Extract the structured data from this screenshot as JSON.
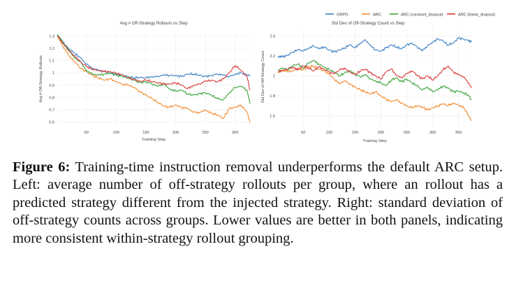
{
  "legend": [
    {
      "name": "GRPO",
      "color": "#3a7fc2"
    },
    {
      "name": "ARC",
      "color": "#f28a2e"
    },
    {
      "name": "ARC (constant_dropout)",
      "color": "#3aa43a"
    },
    {
      "name": "ARC (linear_dropout)",
      "color": "#d93a3a"
    }
  ],
  "chart_data": [
    {
      "type": "line",
      "title": "Avg # Off-Strategy Rollouts vs Step",
      "xlabel": "Training Step",
      "ylabel": "Avg # Off-Strategy Rollouts",
      "xlim": [
        1,
        325
      ],
      "ylim": [
        0.57,
        1.33
      ],
      "xticks": [
        50,
        100,
        150,
        200,
        250,
        300
      ],
      "yticks": [
        0.6,
        0.7,
        0.8,
        0.9,
        1.0,
        1.1,
        1.2,
        1.3
      ],
      "ytick_labels": [
        "0.6",
        "0.7",
        "0.8",
        "0.9",
        "1",
        "1.1",
        "1.2",
        "1.3"
      ],
      "grid": true,
      "x": [
        1,
        10,
        20,
        30,
        40,
        50,
        60,
        70,
        80,
        90,
        100,
        110,
        120,
        130,
        140,
        150,
        160,
        170,
        180,
        190,
        200,
        210,
        220,
        230,
        240,
        250,
        260,
        270,
        280,
        290,
        300,
        310,
        320,
        325
      ],
      "series": [
        {
          "name": "GRPO",
          "values": [
            1.31,
            1.25,
            1.2,
            1.16,
            1.12,
            1.07,
            1.04,
            1.02,
            1.01,
            1.0,
            0.99,
            0.98,
            0.97,
            0.96,
            0.96,
            0.96,
            0.97,
            0.97,
            0.98,
            0.98,
            0.98,
            0.97,
            0.99,
            0.99,
            0.98,
            0.97,
            0.98,
            0.99,
            0.98,
            0.97,
            0.99,
            1.0,
            0.98,
            0.98
          ]
        },
        {
          "name": "ARC",
          "values": [
            1.3,
            1.22,
            1.14,
            1.09,
            1.04,
            1.01,
            0.98,
            0.96,
            0.94,
            0.95,
            0.93,
            0.91,
            0.9,
            0.88,
            0.85,
            0.82,
            0.79,
            0.76,
            0.73,
            0.72,
            0.74,
            0.72,
            0.71,
            0.68,
            0.68,
            0.7,
            0.67,
            0.66,
            0.63,
            0.71,
            0.72,
            0.74,
            0.68,
            0.6
          ]
        },
        {
          "name": "ARC (constant_dropout)",
          "values": [
            1.31,
            1.25,
            1.19,
            1.12,
            1.09,
            1.02,
            0.99,
            0.98,
            0.99,
            1.0,
            0.98,
            0.97,
            0.96,
            0.94,
            0.92,
            0.93,
            0.91,
            0.89,
            0.91,
            0.87,
            0.85,
            0.86,
            0.83,
            0.82,
            0.83,
            0.84,
            0.82,
            0.79,
            0.78,
            0.84,
            0.88,
            0.89,
            0.86,
            0.75
          ]
        },
        {
          "name": "ARC (linear_dropout)",
          "values": [
            1.3,
            1.24,
            1.18,
            1.14,
            1.09,
            1.05,
            1.03,
            1.02,
            1.01,
            1.01,
            1.0,
            0.98,
            0.96,
            0.95,
            0.93,
            0.94,
            0.93,
            0.92,
            0.91,
            0.91,
            0.92,
            0.9,
            0.87,
            0.9,
            0.91,
            0.93,
            0.94,
            0.93,
            0.95,
            1.0,
            1.06,
            1.02,
            0.97,
            0.86
          ]
        }
      ]
    },
    {
      "type": "line",
      "title": "Std Dev of Off-Strategy Count vs Step",
      "xlabel": "Training Step",
      "ylabel": "Std Dev of Off-Strategy Count",
      "xlim": [
        1,
        375
      ],
      "ylim": [
        1.5,
        2.48
      ],
      "xticks": [
        50,
        100,
        150,
        200,
        250,
        300,
        350
      ],
      "yticks": [
        1.6,
        1.8,
        2.0,
        2.2,
        2.4
      ],
      "ytick_labels": [
        "1.6",
        "1.8",
        "2",
        "2.2",
        "2.4"
      ],
      "grid": true,
      "x": [
        1,
        10,
        20,
        30,
        40,
        50,
        60,
        70,
        80,
        90,
        100,
        110,
        120,
        130,
        140,
        150,
        160,
        170,
        180,
        190,
        200,
        210,
        220,
        230,
        240,
        250,
        260,
        270,
        280,
        290,
        300,
        310,
        320,
        330,
        340,
        350,
        360,
        370,
        375
      ],
      "series": [
        {
          "name": "GRPO",
          "values": [
            2.2,
            2.19,
            2.21,
            2.24,
            2.26,
            2.25,
            2.28,
            2.3,
            2.27,
            2.29,
            2.26,
            2.24,
            2.26,
            2.28,
            2.31,
            2.28,
            2.33,
            2.36,
            2.3,
            2.26,
            2.25,
            2.28,
            2.31,
            2.29,
            2.27,
            2.31,
            2.33,
            2.29,
            2.25,
            2.3,
            2.34,
            2.37,
            2.35,
            2.31,
            2.33,
            2.38,
            2.37,
            2.35,
            2.34
          ]
        },
        {
          "name": "ARC",
          "values": [
            2.03,
            2.06,
            2.04,
            2.05,
            2.08,
            2.06,
            2.09,
            2.1,
            2.07,
            2.05,
            2.02,
            1.97,
            1.92,
            1.95,
            1.92,
            1.89,
            1.86,
            1.84,
            1.82,
            1.84,
            1.8,
            1.77,
            1.74,
            1.76,
            1.73,
            1.7,
            1.68,
            1.7,
            1.69,
            1.66,
            1.68,
            1.7,
            1.72,
            1.7,
            1.73,
            1.71,
            1.68,
            1.6,
            1.55
          ]
        },
        {
          "name": "ARC (constant_dropout)",
          "values": [
            2.05,
            2.08,
            2.06,
            2.1,
            2.12,
            2.08,
            2.13,
            2.15,
            2.12,
            2.09,
            2.06,
            2.04,
            2.0,
            2.03,
            2.05,
            2.02,
            1.99,
            2.01,
            1.97,
            1.95,
            1.93,
            1.9,
            1.96,
            1.98,
            1.94,
            1.97,
            1.93,
            1.9,
            1.86,
            1.89,
            1.84,
            1.86,
            1.9,
            1.88,
            1.84,
            1.85,
            1.83,
            1.8,
            1.76
          ]
        },
        {
          "name": "ARC (linear_dropout)",
          "values": [
            2.04,
            2.05,
            2.07,
            2.09,
            2.06,
            2.1,
            2.08,
            2.05,
            2.09,
            2.07,
            2.04,
            2.02,
            2.06,
            2.08,
            2.04,
            2.01,
            2.05,
            2.07,
            2.03,
            2.0,
            1.97,
            2.04,
            2.07,
            2.01,
            1.98,
            2.02,
            2.05,
            2.01,
            1.97,
            2.0,
            1.96,
            2.0,
            2.06,
            2.1,
            2.04,
            2.01,
            1.99,
            1.93,
            1.88
          ]
        }
      ]
    }
  ],
  "caption": {
    "label": "Figure 6:",
    "text": "Training-time instruction removal underperforms the default ARC setup. Left: average number of off-strategy rollouts per group, where an rollout has a predicted strategy different from the injected strategy.  Right:  standard deviation of off-strategy counts across groups.  Lower values are better in both panels, indicating more consistent within-strategy rollout grouping."
  }
}
